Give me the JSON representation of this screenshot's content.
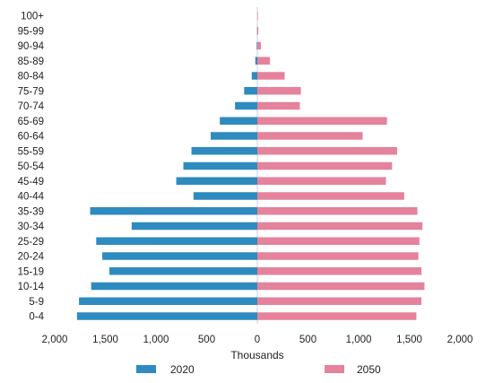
{
  "chart_data": {
    "type": "bar",
    "orientation": "horizontal",
    "subtype": "population-pyramid",
    "title": "",
    "xlabel": "Thousands",
    "ylabel": "",
    "xlim": [
      -2000,
      2000
    ],
    "x_ticks": [
      -2000,
      -1500,
      -1000,
      -500,
      0,
      500,
      1000,
      1500,
      2000
    ],
    "x_tick_labels": [
      "2,000",
      "1,500",
      "1,000",
      "500",
      "0",
      "500",
      "1,000",
      "1,500",
      "2,000"
    ],
    "grid": false,
    "legend_position": "bottom",
    "categories": [
      "0-4",
      "5-9",
      "10-14",
      "15-19",
      "20-24",
      "25-29",
      "30-34",
      "35-39",
      "40-44",
      "45-49",
      "50-54",
      "55-59",
      "60-64",
      "65-69",
      "70-74",
      "75-79",
      "80-84",
      "85-89",
      "90-94",
      "95-99",
      "100+"
    ],
    "series": [
      {
        "name": "2020",
        "color": "#2e8bc0",
        "side": "left",
        "values": [
          1780,
          1760,
          1640,
          1460,
          1530,
          1590,
          1240,
          1650,
          630,
          800,
          730,
          650,
          460,
          370,
          220,
          130,
          55,
          20,
          6,
          2,
          0
        ]
      },
      {
        "name": "2050",
        "color": "#e5829c",
        "side": "right",
        "values": [
          1570,
          1620,
          1650,
          1620,
          1590,
          1600,
          1630,
          1580,
          1450,
          1270,
          1330,
          1380,
          1040,
          1280,
          420,
          430,
          270,
          125,
          35,
          10,
          1
        ]
      }
    ]
  }
}
